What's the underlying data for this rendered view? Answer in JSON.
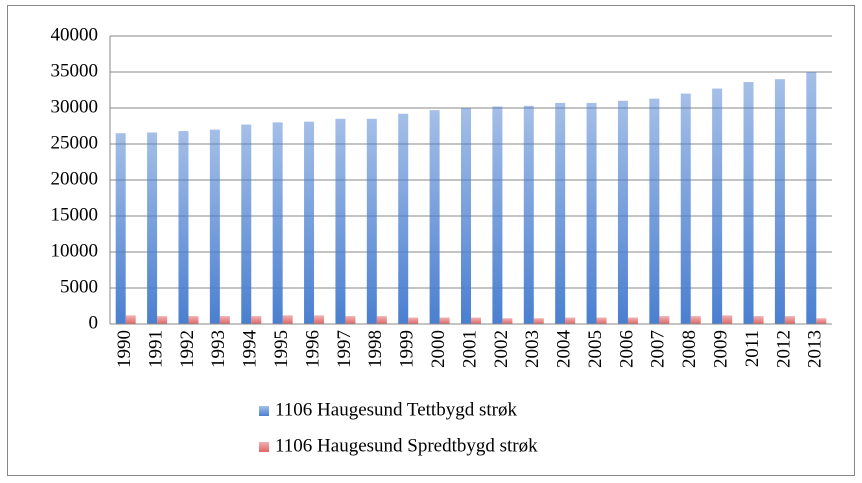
{
  "chart_data": {
    "type": "bar",
    "categories": [
      "1990",
      "1991",
      "1992",
      "1993",
      "1994",
      "1995",
      "1996",
      "1997",
      "1998",
      "1999",
      "2000",
      "2001",
      "2002",
      "2003",
      "2004",
      "2005",
      "2006",
      "2007",
      "2008",
      "2009",
      "2011",
      "2012",
      "2013"
    ],
    "series": [
      {
        "name": "1106 Haugesund Tettbygd strøk",
        "color": "#4a7fd0",
        "values": [
          26500,
          26600,
          26800,
          27000,
          27700,
          28000,
          28100,
          28500,
          28500,
          29200,
          29700,
          30000,
          30200,
          30300,
          30700,
          30700,
          31000,
          31300,
          32000,
          32700,
          33600,
          34000,
          35000
        ]
      },
      {
        "name": "1106 Haugesund Spredtbygd strøk",
        "color": "#e06666",
        "values": [
          1200,
          1100,
          1100,
          1100,
          1100,
          1200,
          1200,
          1100,
          1100,
          900,
          900,
          900,
          800,
          800,
          900,
          900,
          900,
          1100,
          1100,
          1200,
          1100,
          1100,
          800
        ]
      }
    ],
    "ylim": [
      0,
      40000
    ],
    "yticks": [
      0,
      5000,
      10000,
      15000,
      20000,
      25000,
      30000,
      35000,
      40000
    ],
    "grid": true,
    "legend": "bottom"
  }
}
